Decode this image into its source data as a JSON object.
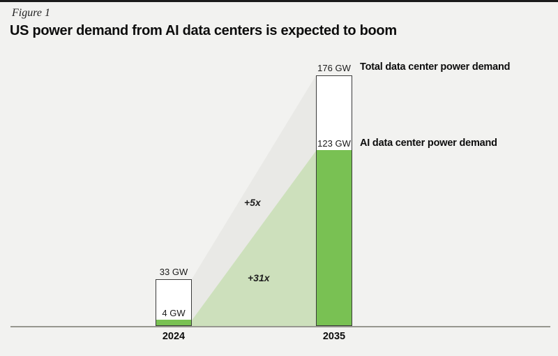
{
  "header": {
    "figure_label": "Figure 1",
    "title": "US power demand from AI data centers is expected to boom"
  },
  "chart_data": {
    "type": "bar",
    "categories": [
      "2024",
      "2035"
    ],
    "unit": "GW",
    "series": [
      {
        "name": "Total data center power demand",
        "values": [
          33,
          176
        ],
        "color": "#ffffff"
      },
      {
        "name": "AI data center power demand",
        "values": [
          4,
          123
        ],
        "color": "#79c153"
      }
    ],
    "value_labels": {
      "total_2024": "33 GW",
      "ai_2024": "4 GW",
      "total_2035": "176 GW",
      "ai_2035": "123 GW"
    },
    "annotations": [
      {
        "text": "+5x",
        "applies_to": "Total data center power demand"
      },
      {
        "text": "+31x",
        "applies_to": "AI data center power demand"
      }
    ],
    "ylim": [
      0,
      176
    ],
    "grid": false,
    "legend_position": "right-of-2035-bar"
  },
  "colors": {
    "background": "#f2f2f0",
    "ai_green": "#79c153",
    "ai_band": "#cde0bc",
    "total_band": "#e9e9e6",
    "bar_outline": "#3a3a3a",
    "axis": "#97978f",
    "text": "#111111",
    "top_rule": "#1b1b1b"
  }
}
